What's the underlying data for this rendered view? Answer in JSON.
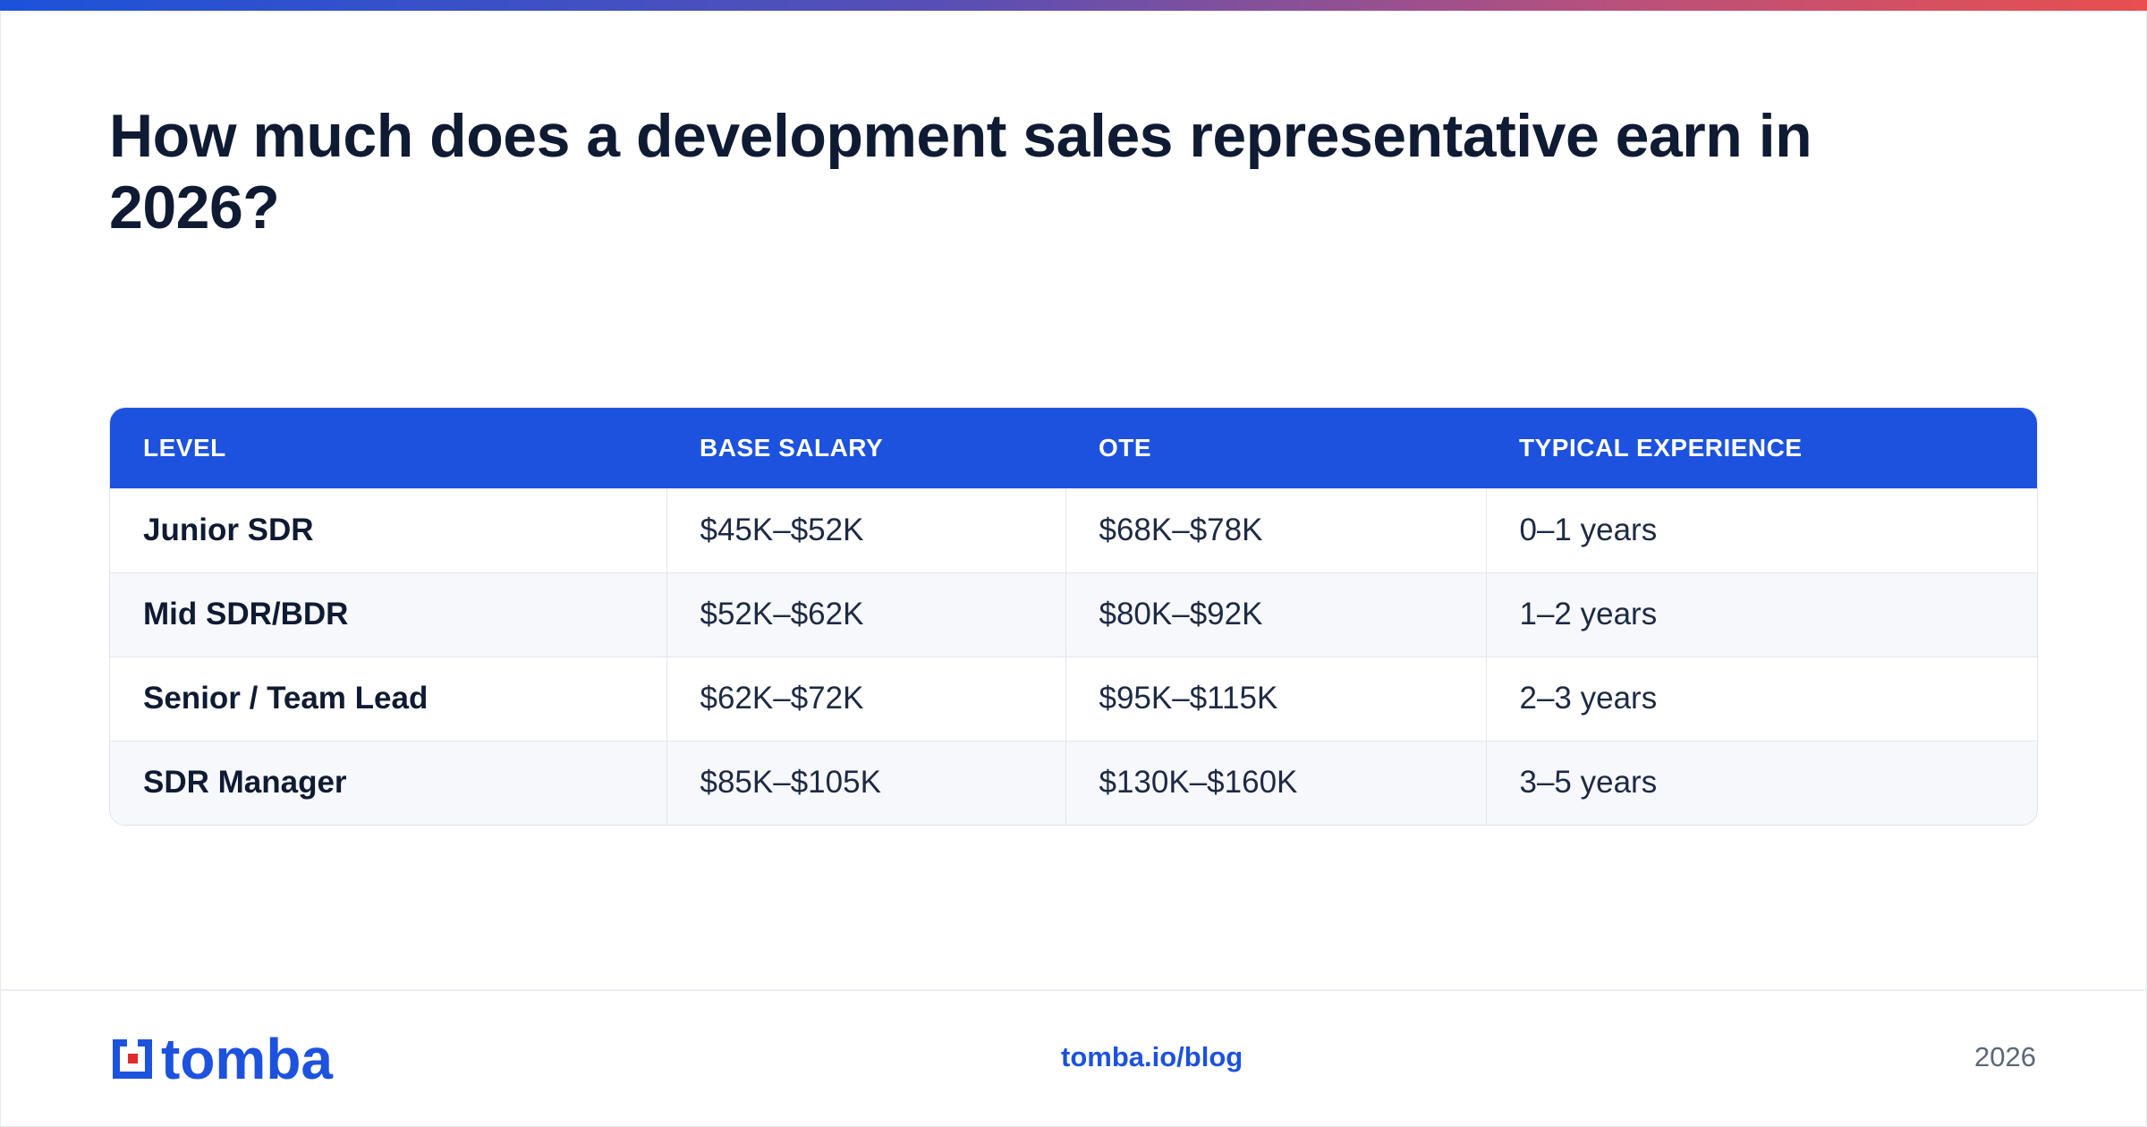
{
  "title": "How much does a development sales representative earn in 2026?",
  "colors": {
    "brand_blue": "#1c52de",
    "gradient": [
      "#1c52d9",
      "#5a4fb3",
      "#b8517c",
      "#e84f4f"
    ],
    "logo_accent": "#e02b2b"
  },
  "table": {
    "headers": [
      "LEVEL",
      "BASE SALARY",
      "OTE",
      "TYPICAL EXPERIENCE"
    ],
    "rows": [
      [
        "Junior SDR",
        "$45K–$52K",
        "$68K–$78K",
        "0–1 years"
      ],
      [
        "Mid SDR/BDR",
        "$52K–$62K",
        "$80K–$92K",
        "1–2 years"
      ],
      [
        "Senior / Team Lead",
        "$62K–$72K",
        "$95K–$115K",
        "2–3 years"
      ],
      [
        "SDR Manager",
        "$85K–$105K",
        "$130K–$160K",
        "3–5 years"
      ]
    ]
  },
  "footer": {
    "logo_text": "tomba",
    "link": "tomba.io/blog",
    "year": "2026"
  }
}
